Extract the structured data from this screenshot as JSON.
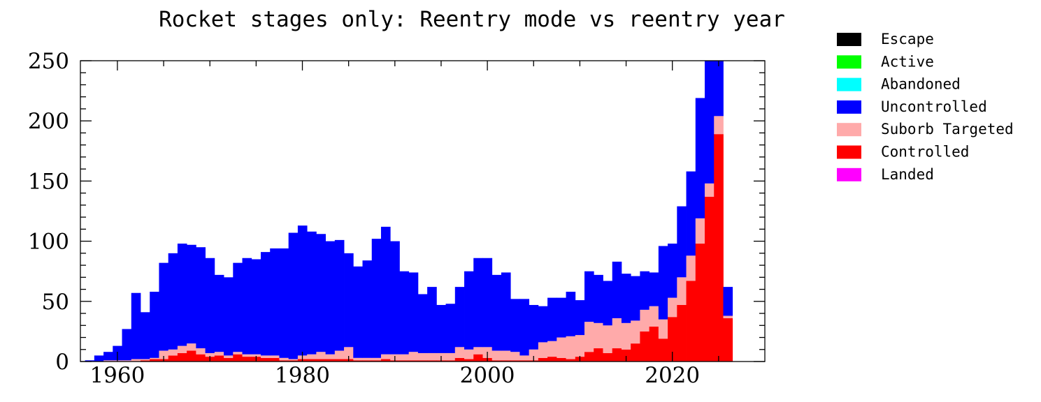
{
  "chart_data": {
    "type": "bar",
    "stacked": true,
    "title": "Rocket stages only: Reentry mode vs reentry year",
    "xlabel": "",
    "ylabel": "",
    "xlim": [
      1956,
      2030
    ],
    "ylim": [
      0,
      250
    ],
    "x_ticks": [
      1960,
      1980,
      2000,
      2020
    ],
    "y_ticks": [
      0,
      50,
      100,
      150,
      200,
      250
    ],
    "grid": false,
    "legend_position": "right",
    "years": [
      1957,
      1958,
      1959,
      1960,
      1961,
      1962,
      1963,
      1964,
      1965,
      1966,
      1967,
      1968,
      1969,
      1970,
      1971,
      1972,
      1973,
      1974,
      1975,
      1976,
      1977,
      1978,
      1979,
      1980,
      1981,
      1982,
      1983,
      1984,
      1985,
      1986,
      1987,
      1988,
      1989,
      1990,
      1991,
      1992,
      1993,
      1994,
      1995,
      1996,
      1997,
      1998,
      1999,
      2000,
      2001,
      2002,
      2003,
      2004,
      2005,
      2006,
      2007,
      2008,
      2009,
      2010,
      2011,
      2012,
      2013,
      2014,
      2015,
      2016,
      2017,
      2018,
      2019,
      2020,
      2021,
      2022,
      2023,
      2024,
      2025,
      2026
    ],
    "series": [
      {
        "name": "Landed",
        "color": "#ff00ff",
        "values": [
          0,
          0,
          0,
          0,
          0,
          0,
          0,
          0,
          0,
          0,
          0,
          0,
          0,
          0,
          0,
          0,
          0,
          0,
          0,
          0,
          0,
          0,
          0,
          0,
          0,
          0,
          0,
          0,
          0,
          0,
          0,
          0,
          0,
          0,
          0,
          0,
          0,
          0,
          0,
          0,
          0,
          0,
          0,
          0,
          0,
          0,
          0,
          0,
          0,
          0,
          0,
          0,
          0,
          0,
          0,
          0,
          0,
          0,
          0,
          0,
          0,
          0,
          0,
          0,
          0,
          0,
          0,
          0,
          0,
          0
        ]
      },
      {
        "name": "Controlled",
        "color": "#ff0000",
        "values": [
          0,
          0,
          0,
          0,
          0,
          0,
          1,
          2,
          2,
          5,
          7,
          9,
          6,
          4,
          5,
          3,
          6,
          4,
          4,
          3,
          3,
          1,
          1,
          2,
          2,
          2,
          2,
          2,
          2,
          1,
          1,
          1,
          2,
          1,
          1,
          1,
          1,
          1,
          1,
          1,
          3,
          2,
          6,
          3,
          1,
          1,
          1,
          1,
          1,
          3,
          4,
          3,
          2,
          4,
          8,
          11,
          7,
          11,
          10,
          15,
          25,
          29,
          19,
          37,
          47,
          67,
          98,
          137,
          189,
          36
        ]
      },
      {
        "name": "Suborb Targeted",
        "color": "#ffaaaa",
        "values": [
          0,
          0,
          1,
          1,
          1,
          2,
          1,
          1,
          7,
          5,
          6,
          6,
          5,
          3,
          3,
          2,
          2,
          2,
          2,
          2,
          2,
          2,
          1,
          3,
          4,
          6,
          4,
          7,
          10,
          2,
          2,
          2,
          4,
          5,
          5,
          7,
          6,
          6,
          6,
          6,
          9,
          8,
          6,
          9,
          8,
          8,
          7,
          4,
          9,
          13,
          13,
          17,
          19,
          18,
          25,
          21,
          23,
          25,
          22,
          19,
          18,
          17,
          16,
          16,
          23,
          21,
          21,
          11,
          15,
          2
        ]
      },
      {
        "name": "Uncontrolled",
        "color": "#0000ff",
        "values": [
          1,
          5,
          7,
          12,
          26,
          55,
          39,
          55,
          73,
          80,
          85,
          82,
          84,
          79,
          64,
          65,
          74,
          80,
          79,
          86,
          89,
          91,
          105,
          108,
          102,
          98,
          94,
          92,
          78,
          76,
          81,
          99,
          106,
          94,
          69,
          66,
          49,
          55,
          40,
          41,
          50,
          65,
          74,
          74,
          63,
          65,
          44,
          47,
          37,
          30,
          36,
          33,
          37,
          29,
          42,
          40,
          37,
          47,
          41,
          37,
          32,
          28,
          61,
          45,
          59,
          70,
          100,
          102,
          54,
          24
        ]
      },
      {
        "name": "Abandoned",
        "color": "#00ffff",
        "values": [
          0,
          0,
          0,
          0,
          0,
          0,
          0,
          0,
          0,
          0,
          0,
          0,
          0,
          0,
          0,
          0,
          0,
          0,
          0,
          0,
          0,
          0,
          0,
          0,
          0,
          0,
          0,
          0,
          0,
          0,
          0,
          0,
          0,
          0,
          0,
          0,
          0,
          0,
          0,
          0,
          0,
          0,
          0,
          0,
          0,
          0,
          0,
          0,
          0,
          0,
          0,
          0,
          0,
          0,
          0,
          0,
          0,
          0,
          0,
          0,
          0,
          0,
          0,
          0,
          0,
          0,
          0,
          0,
          0,
          0
        ]
      },
      {
        "name": "Active",
        "color": "#00ff00",
        "values": [
          0,
          0,
          0,
          0,
          0,
          0,
          0,
          0,
          0,
          0,
          0,
          0,
          0,
          0,
          0,
          0,
          0,
          0,
          0,
          0,
          0,
          0,
          0,
          0,
          0,
          0,
          0,
          0,
          0,
          0,
          0,
          0,
          0,
          0,
          0,
          0,
          0,
          0,
          0,
          0,
          0,
          0,
          0,
          0,
          0,
          0,
          0,
          0,
          0,
          0,
          0,
          0,
          0,
          0,
          0,
          0,
          0,
          0,
          0,
          0,
          0,
          0,
          0,
          0,
          0,
          0,
          0,
          0,
          0,
          0
        ]
      },
      {
        "name": "Escape",
        "color": "#000000",
        "values": [
          0,
          0,
          0,
          0,
          0,
          0,
          0,
          0,
          0,
          0,
          0,
          0,
          0,
          0,
          0,
          0,
          0,
          0,
          0,
          0,
          0,
          0,
          0,
          0,
          0,
          0,
          0,
          0,
          0,
          0,
          0,
          0,
          0,
          0,
          0,
          0,
          0,
          0,
          0,
          0,
          0,
          0,
          0,
          0,
          0,
          0,
          0,
          0,
          0,
          0,
          0,
          0,
          0,
          0,
          0,
          0,
          0,
          0,
          0,
          0,
          0,
          0,
          0,
          0,
          0,
          0,
          0,
          0,
          0,
          0
        ]
      }
    ],
    "legend": [
      {
        "name": "Escape",
        "color": "#000000"
      },
      {
        "name": "Active",
        "color": "#00ff00"
      },
      {
        "name": "Abandoned",
        "color": "#00ffff"
      },
      {
        "name": "Uncontrolled",
        "color": "#0000ff"
      },
      {
        "name": "Suborb Targeted",
        "color": "#ffaaaa"
      },
      {
        "name": "Controlled",
        "color": "#ff0000"
      },
      {
        "name": "Landed",
        "color": "#ff00ff"
      }
    ]
  }
}
